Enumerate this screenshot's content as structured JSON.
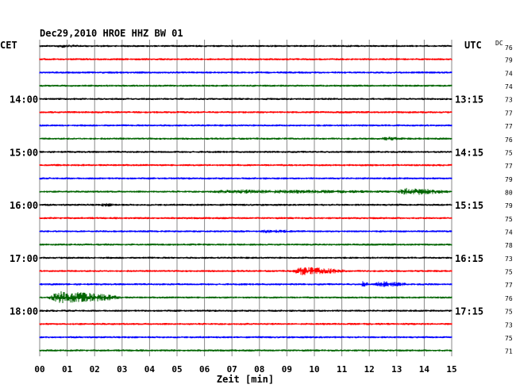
{
  "chart_data": {
    "type": "line",
    "title": "Dec29,2010   HROE HHZ BW 01",
    "left_zone": "CET",
    "right_zone": "UTC",
    "dc_label": "DC",
    "xlabel": "Zeit [min]",
    "xlim": [
      0,
      15
    ],
    "x_ticks": [
      "00",
      "01",
      "02",
      "03",
      "04",
      "05",
      "06",
      "07",
      "08",
      "09",
      "10",
      "11",
      "12",
      "13",
      "14",
      "15"
    ],
    "trace_colors": [
      "#000000",
      "#ff0000",
      "#0000ff",
      "#006400"
    ],
    "left_hour_labels": [
      {
        "trace": 4,
        "text": "14:00"
      },
      {
        "trace": 8,
        "text": "15:00"
      },
      {
        "trace": 12,
        "text": "16:00"
      },
      {
        "trace": 16,
        "text": "17:00"
      },
      {
        "trace": 20,
        "text": "18:00"
      }
    ],
    "right_hour_labels": [
      {
        "trace": 4,
        "text": "13:15"
      },
      {
        "trace": 8,
        "text": "14:15"
      },
      {
        "trace": 12,
        "text": "15:15"
      },
      {
        "trace": 16,
        "text": "16:15"
      },
      {
        "trace": 20,
        "text": "17:15"
      }
    ],
    "dc_values": [
      "76",
      "79",
      "74",
      "74",
      "73",
      "77",
      "77",
      "76",
      "75",
      "77",
      "79",
      "80",
      "79",
      "75",
      "74",
      "78",
      "73",
      "75",
      "77",
      "76",
      "75",
      "73",
      "75",
      "71"
    ],
    "events": [
      {
        "trace": 0,
        "start": 0.6,
        "end": 1.5,
        "amp": 1.5
      },
      {
        "trace": 7,
        "start": 12.4,
        "end": 13.3,
        "amp": 2
      },
      {
        "trace": 11,
        "start": 6.0,
        "end": 13.0,
        "amp": 2
      },
      {
        "trace": 11,
        "start": 13.0,
        "end": 15.0,
        "amp": 5
      },
      {
        "trace": 12,
        "start": 2.2,
        "end": 3.0,
        "amp": 1.5
      },
      {
        "trace": 14,
        "start": 8.0,
        "end": 9.5,
        "amp": 1.5
      },
      {
        "trace": 17,
        "start": 9.2,
        "end": 11.2,
        "amp": 6
      },
      {
        "trace": 18,
        "start": 11.7,
        "end": 12.0,
        "amp": 4
      },
      {
        "trace": 18,
        "start": 12.2,
        "end": 13.4,
        "amp": 4
      },
      {
        "trace": 19,
        "start": 0.3,
        "end": 3.0,
        "amp": 10
      }
    ]
  }
}
